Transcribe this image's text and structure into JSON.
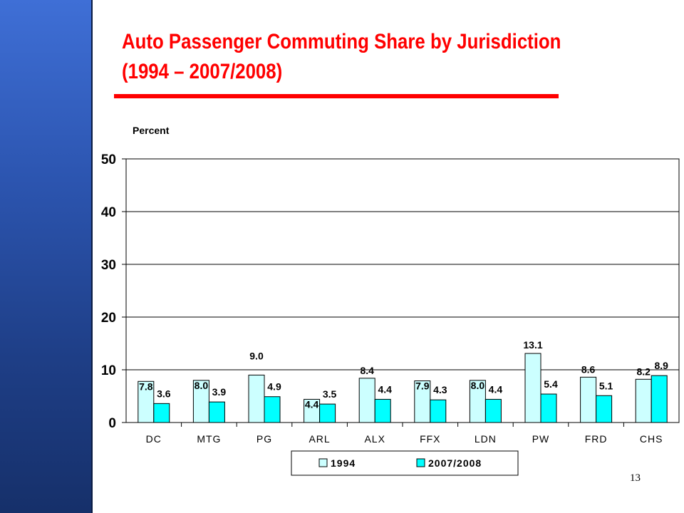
{
  "slide": {
    "title_line1": "Auto Passenger Commuting Share by Jurisdiction",
    "title_line2": "(1994 – 2007/2008)",
    "page_number": "13",
    "colors": {
      "title": "#ff0000",
      "sidebar": "#2c55b0",
      "series_1994": "#ccffff",
      "series_2007": "#00ffff"
    }
  },
  "chart_data": {
    "type": "bar",
    "ylabel": "Percent",
    "ylim": [
      0,
      50
    ],
    "yticks": [
      "0",
      "10",
      "20",
      "30",
      "40",
      "50"
    ],
    "grid": true,
    "legend_position": "bottom",
    "categories": [
      "DC",
      "MTG",
      "PG",
      "ARL",
      "ALX",
      "FFX",
      "LDN",
      "PW",
      "FRD",
      "CHS"
    ],
    "series": [
      {
        "name": "1994",
        "color": "#ccffff",
        "values": [
          7.8,
          8.0,
          9.0,
          4.4,
          8.4,
          7.9,
          8.0,
          13.1,
          8.6,
          8.2
        ],
        "labels": [
          "7.8",
          "8.0",
          "9.0",
          "4.4",
          "8.4",
          "7.9",
          "8.0",
          "13.1",
          "8.6",
          "8.2"
        ]
      },
      {
        "name": "2007/2008",
        "color": "#00ffff",
        "values": [
          3.6,
          3.9,
          4.9,
          3.5,
          4.4,
          4.3,
          4.4,
          5.4,
          5.1,
          8.9
        ],
        "labels": [
          "3.6",
          "3.9",
          "4.9",
          "3.5",
          "4.4",
          "4.3",
          "4.4",
          "5.4",
          "5.1",
          "8.9"
        ]
      }
    ]
  }
}
